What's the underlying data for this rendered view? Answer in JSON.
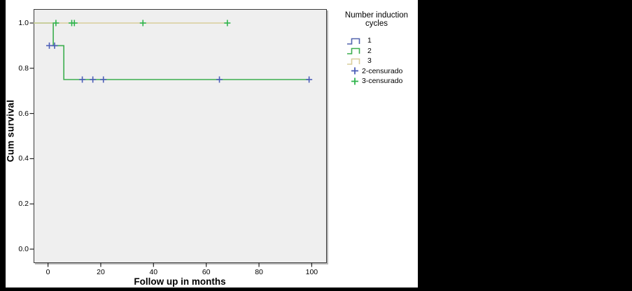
{
  "colors": {
    "outside_background": "#000000",
    "panel_background": "#ffffff",
    "plot_background": "#efefef",
    "frame_border": "#3b3b3b",
    "tick_color": "#222222",
    "series1_blue": "#5264ae",
    "series2_green": "#3cae4e",
    "series3_tan": "#d9cd9b",
    "censor2_blue": "#4c5eb8",
    "censor3_green": "#2fb44c"
  },
  "axes": {
    "xlabel": "Follow up in months",
    "ylabel": "Cum survival",
    "x_tick_labels": [
      "0",
      "20",
      "40",
      "60",
      "80",
      "100"
    ],
    "y_tick_labels": [
      "0.0",
      "0.2",
      "0.4",
      "0.6",
      "0.8",
      "1.0"
    ]
  },
  "legend": {
    "title_lines": [
      "Number induction",
      "cycles"
    ],
    "entries": [
      {
        "label": "1",
        "type": "step",
        "color": "#5264ae"
      },
      {
        "label": "2",
        "type": "step",
        "color": "#3cae4e"
      },
      {
        "label": "3",
        "type": "step",
        "color": "#d9cd9b"
      },
      {
        "label": "2-censurado",
        "type": "plus",
        "color": "#4c5eb8"
      },
      {
        "label": "3-censurado",
        "type": "plus",
        "color": "#2fb44c"
      }
    ]
  },
  "chart_data": {
    "type": "line",
    "subtype": "kaplan_meier_step",
    "title": "",
    "xlabel": "Follow up in months",
    "ylabel": "Cum survival",
    "legend_title": "Number induction cycles",
    "x_ticks": [
      0,
      20,
      40,
      60,
      80,
      100
    ],
    "y_ticks": [
      0.0,
      0.2,
      0.4,
      0.6,
      0.8,
      1.0
    ],
    "xlim": [
      -5.5,
      105.5
    ],
    "ylim": [
      -0.062,
      1.062
    ],
    "grid": false,
    "legend_position": "right",
    "series": [
      {
        "name": "1",
        "color": "#5264ae",
        "points": [],
        "censored": [],
        "censor_color": "#4c5eb8"
      },
      {
        "name": "2",
        "color": "#3cae4e",
        "points": [
          [
            0,
            1.0
          ],
          [
            2,
            1.0
          ],
          [
            2,
            0.9
          ],
          [
            6,
            0.9
          ],
          [
            6,
            0.75
          ],
          [
            99,
            0.75
          ]
        ],
        "censored": [
          [
            0.5,
            0.9
          ],
          [
            2.5,
            0.9
          ],
          [
            13,
            0.75
          ],
          [
            17,
            0.75
          ],
          [
            21,
            0.75
          ],
          [
            65,
            0.75
          ],
          [
            99,
            0.75
          ]
        ],
        "censor_color": "#4c5eb8"
      },
      {
        "name": "3",
        "color": "#d9cd9b",
        "points": [
          [
            0,
            1.0
          ],
          [
            68,
            1.0
          ]
        ],
        "censored": [
          [
            3,
            1.0
          ],
          [
            9,
            1.0
          ],
          [
            10,
            1.0
          ],
          [
            36,
            1.0
          ],
          [
            68,
            1.0
          ]
        ],
        "censor_color": "#2fb44c"
      }
    ]
  }
}
